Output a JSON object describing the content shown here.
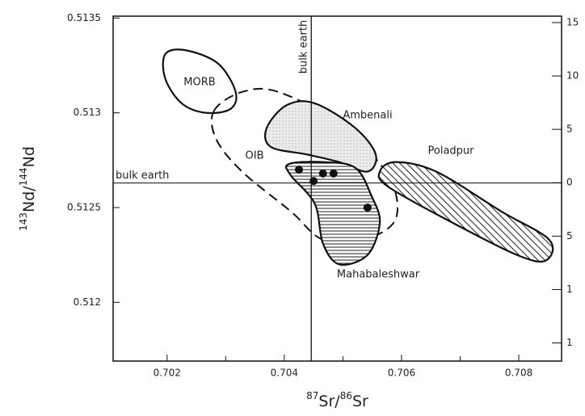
{
  "chart_data": {
    "type": "field-scatter",
    "xlabel": [
      "87",
      "Sr/",
      "86",
      "Sr"
    ],
    "ylabel": [
      "143",
      "Nd/",
      "144",
      "Nd"
    ],
    "xlim": [
      0.70108,
      0.70873
    ],
    "ylim": [
      0.51169,
      0.51351
    ],
    "y2lim": [
      -16.7,
      15.6
    ],
    "xticks": [
      0.702,
      0.704,
      0.706,
      0.708
    ],
    "xminorticks": [
      0.703,
      0.705,
      0.707
    ],
    "yticks": [
      0.512,
      0.5125,
      0.513,
      0.5135
    ],
    "y2ticks": [
      15,
      10,
      5,
      0,
      {
        "value": -5,
        "label": "5"
      },
      {
        "value": -10,
        "label": "1"
      },
      {
        "value": -15,
        "label": "1"
      }
    ],
    "reference_lines": [
      {
        "label": "bulk earth",
        "orientation": "vertical",
        "value": 0.70446
      },
      {
        "label": "bulk earth",
        "orientation": "horizontal",
        "value": 0.51263
      }
    ],
    "fields": [
      {
        "name": "MORB",
        "pattern": "none",
        "dashed": false,
        "x": [
          0.70197,
          0.70232,
          0.70287,
          0.70317,
          0.70308,
          0.70266,
          0.70225,
          0.70197
        ],
        "y": [
          0.51331,
          0.51333,
          0.51326,
          0.51311,
          0.51302,
          0.513,
          0.51305,
          0.51318
        ]
      },
      {
        "name": "OIB",
        "pattern": "none",
        "dashed": true,
        "x": [
          0.7028,
          0.70328,
          0.7039,
          0.70494,
          0.70577,
          0.7059,
          0.70535,
          0.70466,
          0.70411,
          0.70328,
          0.70284
        ],
        "y": [
          0.51301,
          0.51311,
          0.51311,
          0.51294,
          0.51267,
          0.51244,
          0.51233,
          0.51233,
          0.51248,
          0.51269,
          0.51286
        ]
      },
      {
        "name": "Ambenali",
        "pattern": "dots",
        "dashed": false,
        "x": [
          0.7037,
          0.70404,
          0.70452,
          0.70521,
          0.70556,
          0.70542,
          0.70494,
          0.70439,
          0.70377
        ],
        "y": [
          0.51292,
          0.51304,
          0.51305,
          0.51292,
          0.51278,
          0.51269,
          0.51274,
          0.51278,
          0.51282
        ]
      },
      {
        "name": "Mahabaleshwar",
        "pattern": "horizontal",
        "dashed": false,
        "x": [
          0.70408,
          0.70466,
          0.70521,
          0.70549,
          0.70563,
          0.70542,
          0.70494,
          0.70466,
          0.70452,
          0.70411
        ],
        "y": [
          0.51273,
          0.51274,
          0.51271,
          0.51256,
          0.51242,
          0.51225,
          0.5122,
          0.51231,
          0.51252,
          0.51267
        ]
      },
      {
        "name": "Poladpur",
        "pattern": "diagonal",
        "dashed": false,
        "x": [
          0.70563,
          0.7059,
          0.70659,
          0.7077,
          0.70852,
          0.70846,
          0.70797,
          0.70687,
          0.70577
        ],
        "y": [
          0.51269,
          0.51274,
          0.51269,
          0.51248,
          0.51233,
          0.51222,
          0.51225,
          0.51242,
          0.51261
        ]
      }
    ],
    "points": {
      "x": [
        0.70425,
        0.7045,
        0.70466,
        0.70484,
        0.70542
      ],
      "y": [
        0.5127,
        0.51264,
        0.51268,
        0.51268,
        0.5125
      ]
    }
  }
}
